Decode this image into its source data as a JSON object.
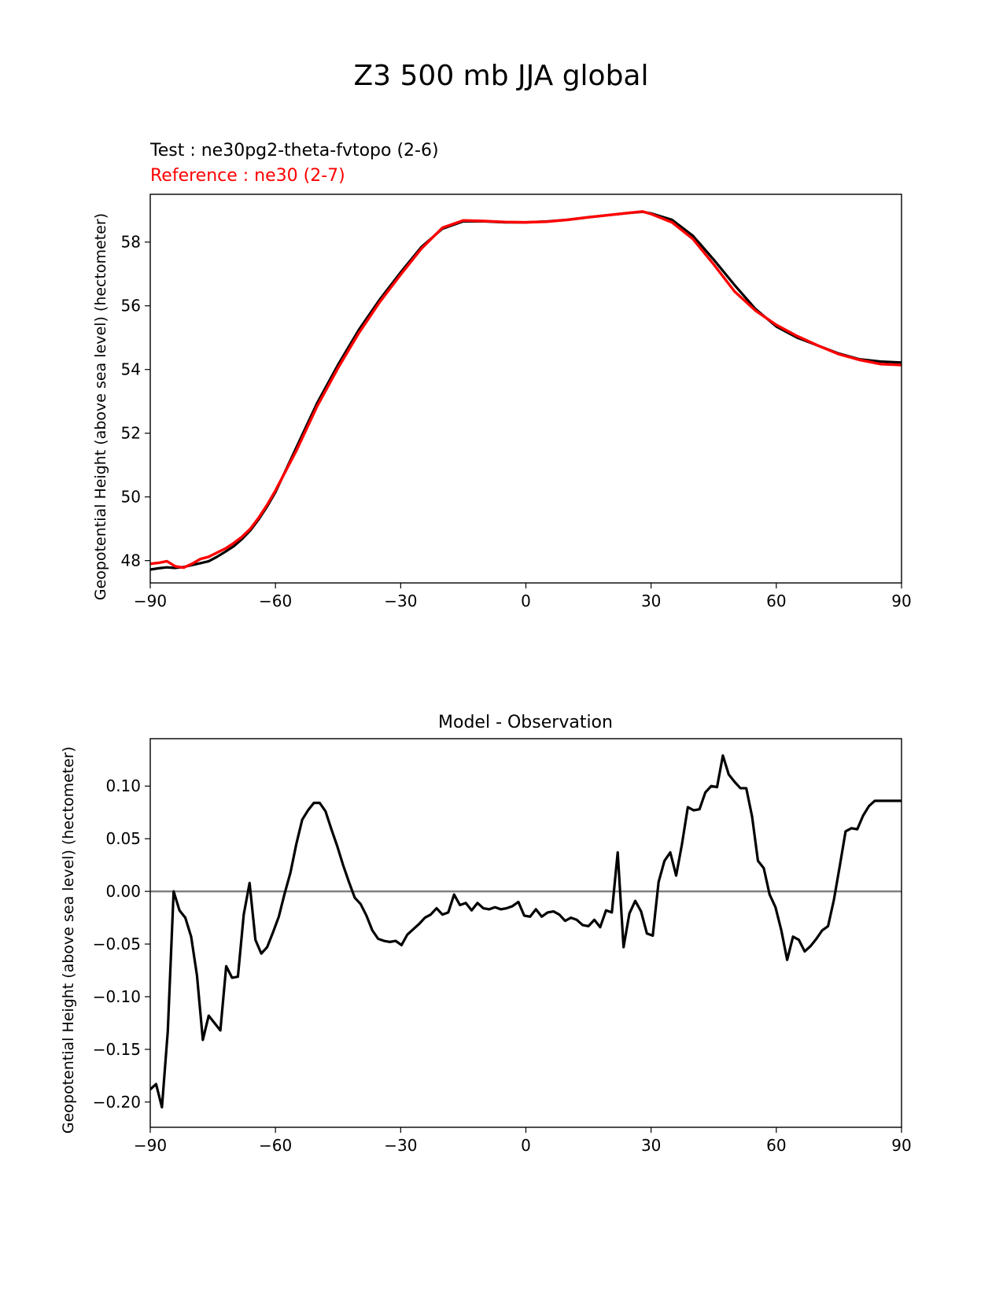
{
  "figure_title": "Z3 500 mb JJA global",
  "chart_data": [
    {
      "type": "line",
      "test_label": "Test : ne30pg2-theta-fvtopo (2-6)",
      "reference_label": "Reference : ne30 (2-7)",
      "ylabel": "Geopotential Height (above sea level) (hectometer)",
      "xlim": [
        -90,
        90
      ],
      "ylim": [
        47.3,
        59.5
      ],
      "xticks": [
        -90,
        -60,
        -30,
        0,
        30,
        60,
        90
      ],
      "xtick_labels": [
        "−90",
        "−60",
        "−30",
        "0",
        "30",
        "60",
        "90"
      ],
      "yticks": [
        48,
        50,
        52,
        54,
        56,
        58
      ],
      "ytick_labels": [
        "48",
        "50",
        "52",
        "54",
        "56",
        "58"
      ],
      "series": [
        {
          "role": "test",
          "color": "#000000",
          "x": [
            -90,
            -88,
            -86,
            -84,
            -82,
            -80,
            -78,
            -76,
            -74,
            -72,
            -70,
            -68,
            -66,
            -64,
            -62,
            -60,
            -55,
            -50,
            -45,
            -40,
            -35,
            -30,
            -25,
            -20,
            -15,
            -10,
            -5,
            0,
            5,
            10,
            15,
            20,
            25,
            28,
            30,
            35,
            40,
            45,
            50,
            55,
            60,
            65,
            70,
            75,
            80,
            85,
            90
          ],
          "y": [
            47.72,
            47.76,
            47.79,
            47.77,
            47.8,
            47.86,
            47.92,
            47.98,
            48.12,
            48.28,
            48.45,
            48.68,
            48.95,
            49.3,
            49.7,
            50.15,
            51.55,
            52.95,
            54.15,
            55.25,
            56.2,
            57.05,
            57.85,
            58.42,
            58.65,
            58.65,
            58.62,
            58.62,
            58.65,
            58.7,
            58.78,
            58.85,
            58.92,
            58.95,
            58.9,
            58.7,
            58.2,
            57.45,
            56.65,
            55.9,
            55.35,
            55.0,
            54.75,
            54.5,
            54.32,
            54.25,
            54.22
          ]
        },
        {
          "role": "reference",
          "color": "#ff0000",
          "x": [
            -90,
            -88,
            -86,
            -84,
            -82,
            -80,
            -78,
            -76,
            -74,
            -72,
            -70,
            -68,
            -66,
            -64,
            -62,
            -60,
            -55,
            -50,
            -45,
            -40,
            -35,
            -30,
            -25,
            -20,
            -15,
            -10,
            -5,
            0,
            5,
            10,
            15,
            20,
            25,
            28,
            30,
            35,
            40,
            45,
            50,
            55,
            60,
            65,
            70,
            75,
            80,
            85,
            90
          ],
          "y": [
            47.9,
            47.93,
            47.98,
            47.82,
            47.78,
            47.9,
            48.05,
            48.12,
            48.25,
            48.38,
            48.55,
            48.75,
            49.0,
            49.35,
            49.75,
            50.2,
            51.45,
            52.85,
            54.05,
            55.15,
            56.12,
            56.98,
            57.8,
            58.45,
            58.68,
            58.66,
            58.63,
            58.62,
            58.64,
            58.7,
            58.78,
            58.85,
            58.92,
            58.96,
            58.88,
            58.62,
            58.1,
            57.3,
            56.45,
            55.85,
            55.4,
            55.05,
            54.75,
            54.48,
            54.3,
            54.17,
            54.14
          ]
        }
      ]
    },
    {
      "type": "line",
      "title": "Model - Observation",
      "ylabel": "Geopotential Height (above sea level) (hectometer)",
      "xlim": [
        -90,
        90
      ],
      "ylim": [
        -0.224,
        0.145
      ],
      "xticks": [
        -90,
        -60,
        -30,
        0,
        30,
        60,
        90
      ],
      "xtick_labels": [
        "−90",
        "−60",
        "−30",
        "0",
        "30",
        "60",
        "90"
      ],
      "yticks": [
        -0.2,
        -0.15,
        -0.1,
        -0.05,
        0.0,
        0.05,
        0.1
      ],
      "ytick_labels": [
        "−0.20",
        "−0.15",
        "−0.10",
        "−0.05",
        "0.00",
        "0.05",
        "0.10"
      ],
      "zero_line_color": "#808080",
      "series": [
        {
          "role": "difference",
          "color": "#000000",
          "x": [
            -90,
            -88.6,
            -87.2,
            -85.8,
            -84.4,
            -83.0,
            -81.6,
            -80.2,
            -78.8,
            -77.4,
            -76.0,
            -74.6,
            -73.2,
            -71.8,
            -70.4,
            -69.0,
            -67.6,
            -66.2,
            -64.8,
            -63.4,
            -62.0,
            -60.6,
            -59.2,
            -57.8,
            -56.4,
            -55.0,
            -53.6,
            -52.2,
            -50.8,
            -49.4,
            -48.0,
            -46.6,
            -45.2,
            -43.8,
            -42.4,
            -41.0,
            -39.6,
            -38.2,
            -36.8,
            -35.4,
            -34.0,
            -32.6,
            -31.2,
            -29.8,
            -28.4,
            -27.0,
            -25.6,
            -24.2,
            -22.8,
            -21.4,
            -20.0,
            -18.6,
            -17.2,
            -15.8,
            -14.4,
            -13.0,
            -11.6,
            -10.2,
            -8.8,
            -7.4,
            -6.0,
            -4.6,
            -3.2,
            -1.8,
            -0.4,
            1.0,
            2.4,
            3.8,
            5.2,
            6.6,
            8.0,
            9.4,
            10.8,
            12.2,
            13.6,
            15.0,
            16.4,
            17.8,
            19.2,
            20.6,
            22.0,
            23.4,
            24.8,
            26.2,
            27.6,
            29.0,
            30.4,
            31.8,
            33.2,
            34.6,
            36.0,
            37.4,
            38.8,
            40.2,
            41.6,
            43.0,
            44.4,
            45.8,
            47.2,
            48.6,
            50.0,
            51.4,
            52.8,
            54.2,
            55.6,
            57.0,
            58.4,
            59.8,
            61.2,
            62.6,
            64.0,
            65.4,
            66.8,
            68.2,
            69.6,
            71.0,
            72.4,
            73.8,
            75.2,
            76.6,
            78.0,
            79.4,
            80.8,
            82.2,
            83.6,
            85.0,
            86.4,
            87.8,
            89.2,
            90.0
          ],
          "y": [
            -0.188,
            -0.183,
            -0.205,
            -0.133,
            0.0,
            -0.018,
            -0.025,
            -0.043,
            -0.08,
            -0.141,
            -0.118,
            -0.125,
            -0.132,
            -0.071,
            -0.082,
            -0.081,
            -0.022,
            0.008,
            -0.046,
            -0.059,
            -0.053,
            -0.039,
            -0.024,
            -0.002,
            0.018,
            0.045,
            0.068,
            0.077,
            0.084,
            0.084,
            0.076,
            0.059,
            0.043,
            0.025,
            0.009,
            -0.006,
            -0.012,
            -0.023,
            -0.037,
            -0.045,
            -0.047,
            -0.048,
            -0.047,
            -0.051,
            -0.041,
            -0.036,
            -0.031,
            -0.025,
            -0.022,
            -0.016,
            -0.022,
            -0.02,
            -0.003,
            -0.013,
            -0.011,
            -0.018,
            -0.011,
            -0.016,
            -0.017,
            -0.015,
            -0.017,
            -0.016,
            -0.014,
            -0.01,
            -0.023,
            -0.024,
            -0.017,
            -0.024,
            -0.02,
            -0.019,
            -0.022,
            -0.028,
            -0.025,
            -0.027,
            -0.032,
            -0.033,
            -0.027,
            -0.034,
            -0.018,
            -0.02,
            0.037,
            -0.053,
            -0.021,
            -0.009,
            -0.019,
            -0.04,
            -0.042,
            0.009,
            0.029,
            0.037,
            0.015,
            0.045,
            0.08,
            0.077,
            0.078,
            0.094,
            0.1,
            0.099,
            0.129,
            0.111,
            0.104,
            0.098,
            0.098,
            0.071,
            0.029,
            0.022,
            -0.003,
            -0.015,
            -0.037,
            -0.065,
            -0.043,
            -0.046,
            -0.057,
            -0.052,
            -0.045,
            -0.037,
            -0.033,
            -0.008,
            0.024,
            0.057,
            0.06,
            0.059,
            0.072,
            0.081,
            0.086,
            0.086,
            0.086,
            0.086,
            0.086,
            0.086
          ]
        }
      ]
    }
  ]
}
